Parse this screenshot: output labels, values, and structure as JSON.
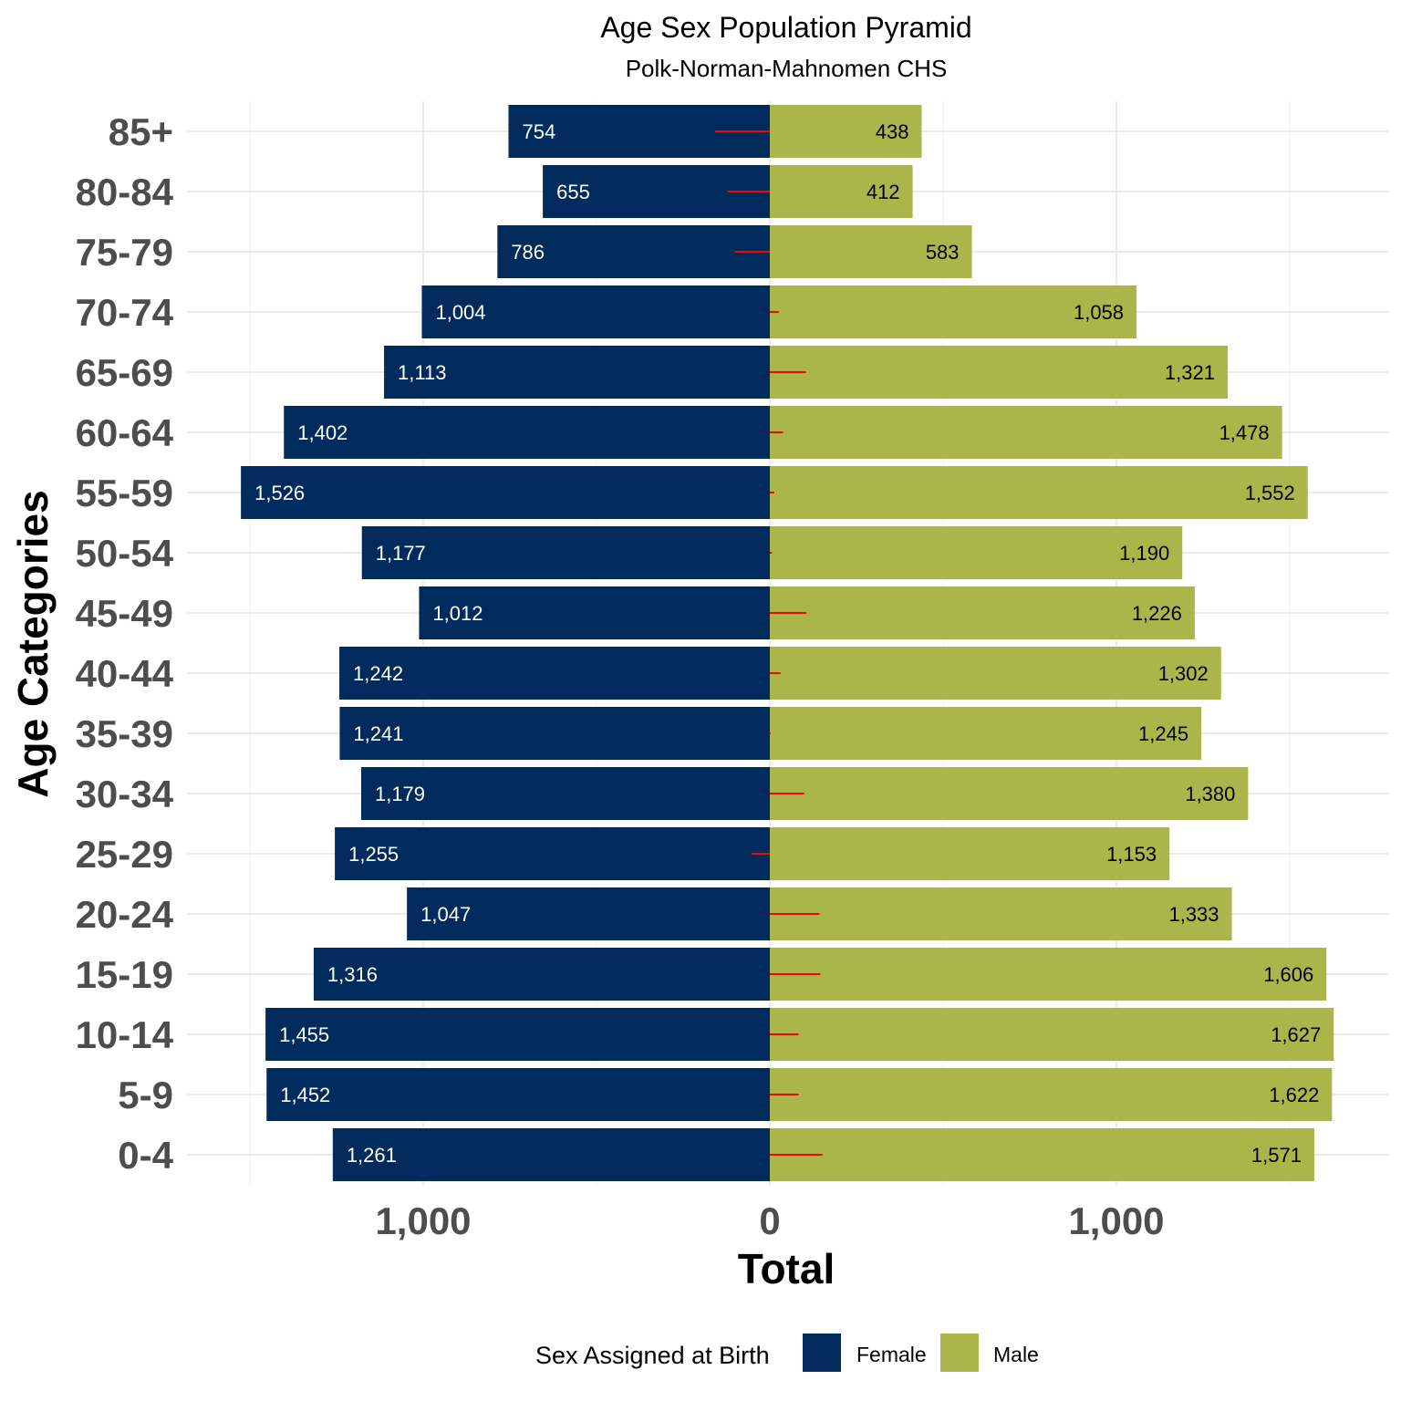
{
  "chart_data": {
    "type": "bar",
    "orientation": "horizontal-pyramid",
    "title": "Age Sex Population Pyramid",
    "subtitle": "Polk-Norman-Mahnomen CHS",
    "xlabel": "Total",
    "ylabel": "Age Categories",
    "xlim": [
      -1500,
      1500
    ],
    "xticks": [
      {
        "value": -1000,
        "label": "1,000"
      },
      {
        "value": 0,
        "label": "0"
      },
      {
        "value": 1000,
        "label": "1,000"
      }
    ],
    "categories": [
      "85+",
      "80-84",
      "75-79",
      "70-74",
      "65-69",
      "60-64",
      "55-59",
      "50-54",
      "45-49",
      "40-44",
      "35-39",
      "30-34",
      "25-29",
      "20-24",
      "15-19",
      "10-14",
      "5-9",
      "0-4"
    ],
    "series": [
      {
        "name": "Female",
        "color": "#002b5c",
        "values": [
          754,
          655,
          786,
          1004,
          1113,
          1402,
          1526,
          1177,
          1012,
          1242,
          1241,
          1179,
          1255,
          1047,
          1316,
          1455,
          1452,
          1261
        ],
        "labels": [
          "754",
          "655",
          "786",
          "1,004",
          "1,113",
          "1,402",
          "1,526",
          "1,177",
          "1,012",
          "1,242",
          "1,241",
          "1,179",
          "1,255",
          "1,047",
          "1,316",
          "1,455",
          "1,452",
          "1,261"
        ]
      },
      {
        "name": "Male",
        "color": "#aab64a",
        "values": [
          438,
          412,
          583,
          1058,
          1321,
          1478,
          1552,
          1190,
          1226,
          1302,
          1245,
          1380,
          1153,
          1333,
          1606,
          1627,
          1622,
          1571
        ],
        "labels": [
          "438",
          "412",
          "583",
          "1,058",
          "1,321",
          "1,478",
          "1,552",
          "1,190",
          "1,226",
          "1,302",
          "1,245",
          "1,380",
          "1,153",
          "1,333",
          "1,606",
          "1,627",
          "1,622",
          "1,571"
        ]
      }
    ],
    "difference_lines": {
      "color": "#ff0000",
      "values": [
        -158,
        -122,
        -102,
        26,
        104,
        38,
        13,
        6,
        106,
        31,
        2,
        99,
        -53,
        143,
        146,
        83,
        83,
        152
      ]
    },
    "legend": {
      "title": "Sex Assigned at Birth",
      "position": "bottom",
      "items": [
        {
          "label": "Female",
          "color": "#002b5c"
        },
        {
          "label": "Male",
          "color": "#aab64a"
        }
      ]
    },
    "grid": true
  }
}
